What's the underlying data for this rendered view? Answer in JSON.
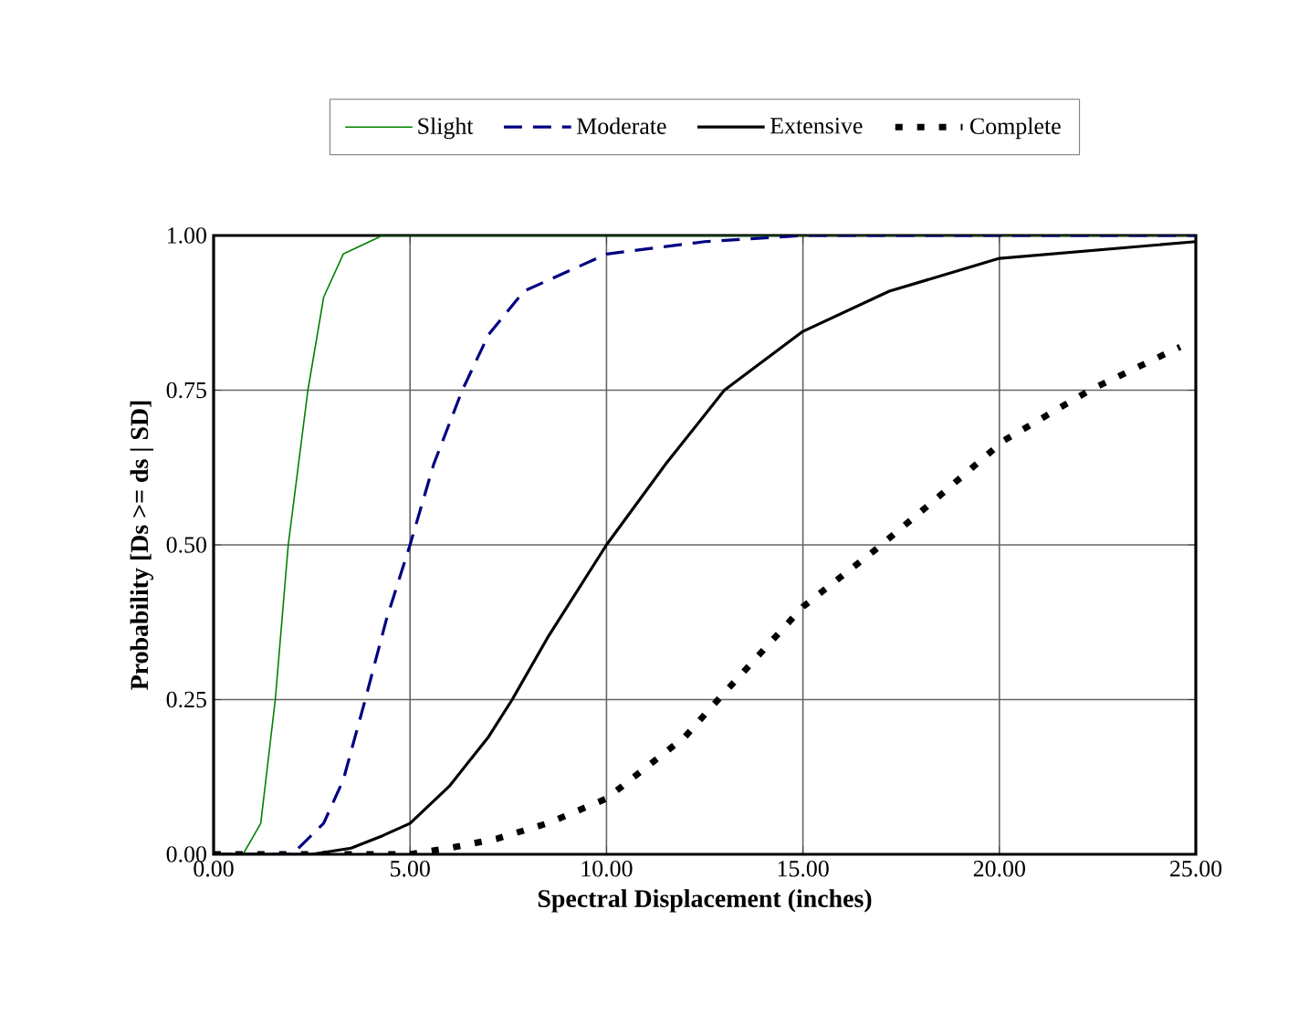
{
  "chart_data": {
    "type": "line",
    "xlabel": "Spectral Displacement  (inches)",
    "ylabel": "Probability [Ds >= ds | SD]",
    "xlim": [
      0,
      25
    ],
    "ylim": [
      0,
      1
    ],
    "xticks": [
      {
        "value": 0,
        "label": "0.00"
      },
      {
        "value": 5,
        "label": "5.00"
      },
      {
        "value": 10,
        "label": "10.00"
      },
      {
        "value": 15,
        "label": "15.00"
      },
      {
        "value": 20,
        "label": "20.00"
      },
      {
        "value": 25,
        "label": "25.00"
      }
    ],
    "yticks": [
      {
        "value": 0,
        "label": "0.00"
      },
      {
        "value": 0.25,
        "label": "0.25"
      },
      {
        "value": 0.5,
        "label": "0.50"
      },
      {
        "value": 0.75,
        "label": "0.75"
      },
      {
        "value": 1,
        "label": "1.00"
      }
    ],
    "grid": true,
    "legend": "top",
    "marker": "none",
    "series": [
      {
        "name": "Slight",
        "color": "#008000",
        "line_style": "solid",
        "x": [
          0,
          0.75,
          1.2,
          1.57,
          1.9,
          2.4,
          2.8,
          3.3,
          4.3,
          25
        ],
        "values": [
          0,
          0,
          0.05,
          0.25,
          0.5,
          0.75,
          0.9,
          0.97,
          1,
          1
        ]
      },
      {
        "name": "Moderate",
        "color": "#000080",
        "line_style": "dashed",
        "x": [
          0,
          2,
          2.8,
          3.3,
          3.86,
          4.4,
          5,
          5.6,
          6.33,
          7,
          7.9,
          10,
          12.5,
          15,
          25
        ],
        "values": [
          0,
          0,
          0.05,
          0.12,
          0.25,
          0.38,
          0.5,
          0.63,
          0.75,
          0.84,
          0.91,
          0.97,
          0.99,
          1,
          1
        ]
      },
      {
        "name": "Extensive",
        "color": "#000000",
        "line_style": "solid",
        "x": [
          0,
          2.5,
          3.5,
          4.3,
          5,
          6,
          7,
          7.6,
          8.5,
          10,
          11.5,
          13,
          15,
          17.2,
          20,
          25
        ],
        "values": [
          0,
          0,
          0.01,
          0.03,
          0.05,
          0.11,
          0.19,
          0.25,
          0.35,
          0.5,
          0.63,
          0.75,
          0.845,
          0.91,
          0.963,
          0.99
        ]
      },
      {
        "name": "Complete",
        "color": "#000000",
        "line_style": "dotted",
        "x": [
          0,
          5,
          6,
          7.2,
          8.5,
          10,
          12,
          12.7,
          15,
          16.9,
          18.4,
          20.1,
          22.3,
          24.6
        ],
        "values": [
          0,
          0,
          0.01,
          0.025,
          0.05,
          0.09,
          0.19,
          0.24,
          0.4,
          0.495,
          0.575,
          0.668,
          0.75,
          0.82
        ]
      }
    ]
  }
}
